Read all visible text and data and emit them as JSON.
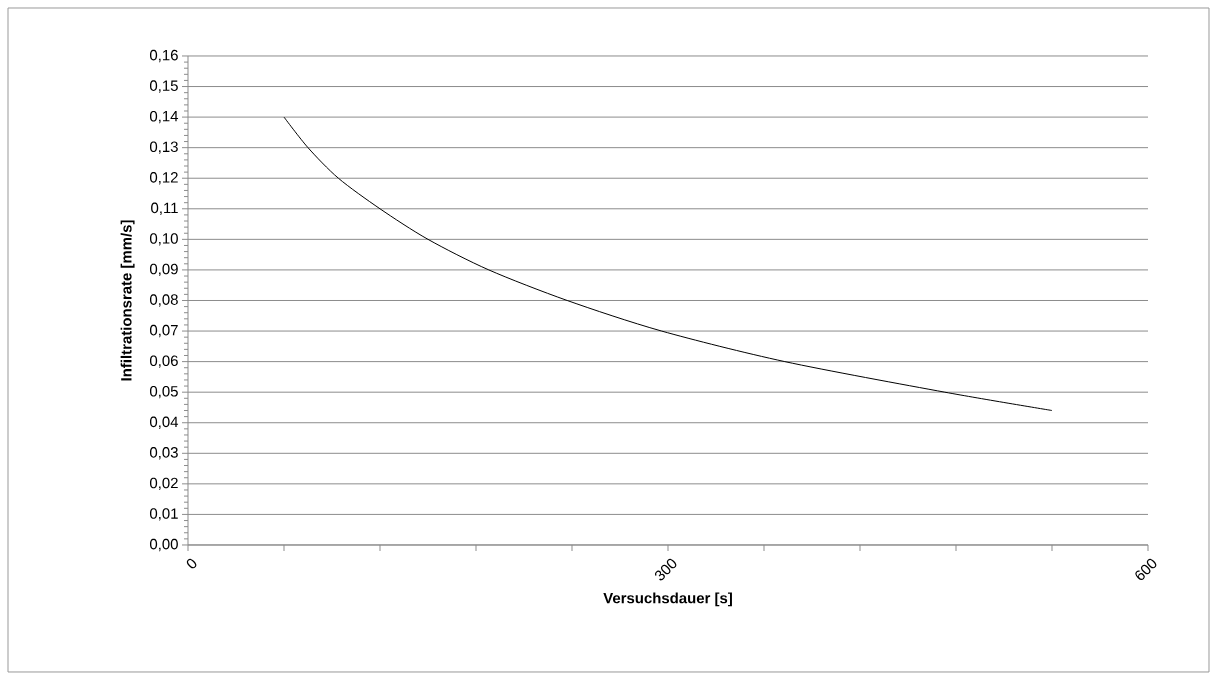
{
  "chart_data": {
    "type": "line",
    "xlabel": "Versuchsdauer [s]",
    "ylabel": "Infiltrationsrate [mm/s]",
    "x": [
      60,
      75,
      94,
      120,
      150,
      188,
      237,
      296,
      373,
      473,
      540
    ],
    "series": [
      {
        "color": "#000000",
        "values": [
          0.14,
          0.13,
          0.12,
          0.11,
          0.1,
          0.09,
          0.08,
          0.07,
          0.06,
          0.05,
          0.044
        ]
      }
    ],
    "xlim": [
      0,
      600
    ],
    "xticks": [
      0,
      {
        "value": 60,
        "label": null
      },
      {
        "value": 120,
        "label": null
      },
      {
        "value": 180,
        "label": null
      },
      {
        "value": 240,
        "label": null
      },
      300,
      {
        "value": 360,
        "label": null
      },
      {
        "value": 420,
        "label": null
      },
      {
        "value": 480,
        "label": null
      },
      {
        "value": 540,
        "label": null
      },
      600
    ],
    "ylim": [
      0,
      0.16
    ],
    "yticks": [
      {
        "value": 0,
        "label": "0,00"
      },
      {
        "value": 0.01,
        "label": "0,01"
      },
      {
        "value": 0.02,
        "label": "0,02"
      },
      {
        "value": 0.03,
        "label": "0,03"
      },
      {
        "value": 0.04,
        "label": "0,04"
      },
      {
        "value": 0.05,
        "label": "0,05"
      },
      {
        "value": 0.06,
        "label": "0,06"
      },
      {
        "value": 0.07,
        "label": "0,07"
      },
      {
        "value": 0.08,
        "label": "0,08"
      },
      {
        "value": 0.09,
        "label": "0,09"
      },
      {
        "value": 0.1,
        "label": "0,10"
      },
      {
        "value": 0.11,
        "label": "0,11"
      },
      {
        "value": 0.12,
        "label": "0,12"
      },
      {
        "value": 0.13,
        "label": "0,13"
      },
      {
        "value": 0.14,
        "label": "0,14"
      },
      {
        "value": 0.15,
        "label": "0,15"
      },
      {
        "value": 0.16,
        "label": "0,16"
      }
    ],
    "grid": "y"
  }
}
